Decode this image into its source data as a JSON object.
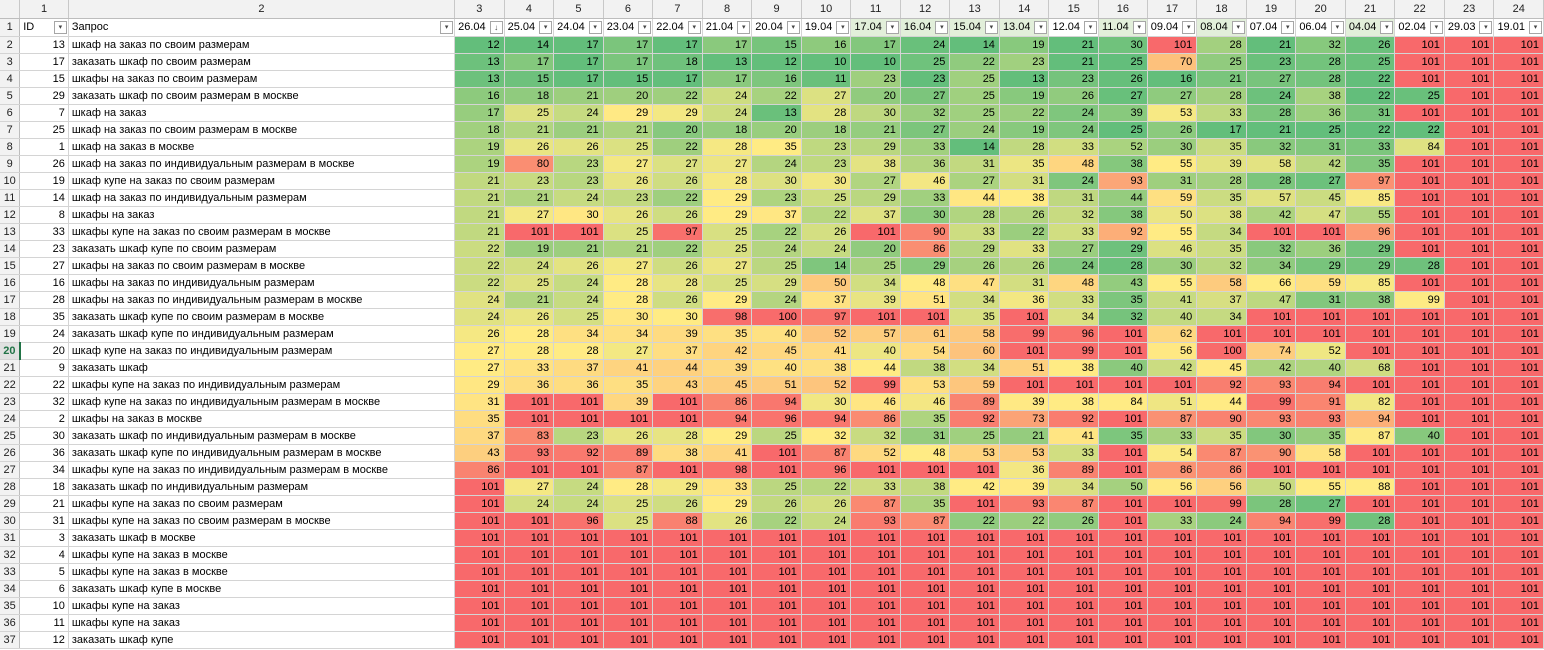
{
  "col_numbers": [
    "1",
    "2",
    "3",
    "4",
    "5",
    "6",
    "7",
    "8",
    "9",
    "10",
    "11",
    "12",
    "13",
    "14",
    "15",
    "16",
    "17",
    "18",
    "19",
    "20",
    "21",
    "22",
    "23",
    "24"
  ],
  "header": {
    "id_label": "ID",
    "query_label": "Запрос",
    "dates": [
      "26.04",
      "25.04",
      "24.04",
      "23.04",
      "22.04",
      "21.04",
      "20.04",
      "19.04",
      "17.04",
      "16.04",
      "15.04",
      "13.04",
      "12.04",
      "11.04",
      "09.04",
      "08.04",
      "07.04",
      "06.04",
      "04.04",
      "02.04",
      "29.03",
      "19.01"
    ],
    "sorted_column_index": 0,
    "header_date_colors": [
      "#ffffff",
      "#ffffff",
      "#ffffff",
      "#ffffff",
      "#ffffff",
      "#ffffff",
      "#ffffff",
      "#ffffff",
      "#e2efda",
      "#e2efda",
      "#e2efda",
      "#e2efda",
      "#ffffff",
      "#e2efda",
      "#ffffff",
      "#e2efda",
      "#ffffff",
      "#ffffff",
      "#e2efda",
      "#ffffff",
      "#ffffff",
      "#ffffff"
    ]
  },
  "selected_row": "20",
  "colors": {
    "good": "#63be7b",
    "mid": "#ffeb84",
    "bad": "#f8696b",
    "header_bg": "#f2f2f2",
    "selection": "#217346"
  },
  "rows": [
    {
      "row": "2",
      "id": "13",
      "query": "шкаф на заказ по своим размерам",
      "values": [
        12,
        14,
        17,
        17,
        17,
        17,
        15,
        16,
        17,
        24,
        14,
        19,
        21,
        30,
        101,
        28,
        21,
        32,
        26,
        101,
        101,
        101
      ]
    },
    {
      "row": "3",
      "id": "17",
      "query": "заказать шкаф по своим размерам",
      "values": [
        13,
        17,
        17,
        17,
        18,
        13,
        12,
        10,
        10,
        25,
        22,
        23,
        21,
        25,
        70,
        25,
        23,
        28,
        25,
        101,
        101,
        101
      ]
    },
    {
      "row": "4",
      "id": "15",
      "query": "шкафы на заказ по своим размерам",
      "values": [
        13,
        15,
        17,
        15,
        17,
        17,
        16,
        11,
        23,
        23,
        25,
        13,
        23,
        26,
        16,
        21,
        27,
        28,
        22,
        101,
        101,
        101
      ]
    },
    {
      "row": "5",
      "id": "29",
      "query": "заказать шкаф по своим размерам в москве",
      "values": [
        16,
        18,
        21,
        20,
        22,
        24,
        22,
        27,
        20,
        27,
        25,
        19,
        26,
        27,
        27,
        28,
        24,
        38,
        22,
        25,
        101,
        101
      ]
    },
    {
      "row": "6",
      "id": "7",
      "query": "шкаф на заказ",
      "values": [
        17,
        25,
        24,
        29,
        29,
        24,
        13,
        28,
        30,
        32,
        25,
        22,
        24,
        39,
        53,
        33,
        28,
        36,
        31,
        101,
        101,
        101
      ]
    },
    {
      "row": "7",
      "id": "25",
      "query": "шкаф на заказ по своим размерам в москве",
      "values": [
        18,
        21,
        21,
        21,
        20,
        18,
        20,
        18,
        21,
        27,
        24,
        19,
        24,
        25,
        26,
        17,
        21,
        25,
        22,
        22,
        101,
        101
      ]
    },
    {
      "row": "8",
      "id": "1",
      "query": "шкаф на заказ в москве",
      "values": [
        19,
        26,
        26,
        25,
        22,
        28,
        35,
        23,
        29,
        33,
        14,
        28,
        33,
        52,
        30,
        35,
        32,
        31,
        33,
        84,
        101,
        101
      ]
    },
    {
      "row": "9",
      "id": "26",
      "query": "шкаф на заказ по индивидуальным размерам в москве",
      "values": [
        19,
        80,
        23,
        27,
        27,
        27,
        24,
        23,
        38,
        36,
        31,
        35,
        48,
        38,
        55,
        39,
        58,
        42,
        35,
        101,
        101,
        101
      ]
    },
    {
      "row": "10",
      "id": "19",
      "query": "шкаф купе на заказ по своим размерам",
      "values": [
        21,
        23,
        23,
        26,
        26,
        28,
        30,
        30,
        27,
        46,
        27,
        31,
        24,
        93,
        31,
        28,
        28,
        27,
        97,
        101,
        101,
        101
      ]
    },
    {
      "row": "11",
      "id": "14",
      "query": "шкаф на заказ по индивидуальным размерам",
      "values": [
        21,
        21,
        24,
        23,
        22,
        29,
        23,
        25,
        29,
        33,
        44,
        38,
        31,
        44,
        59,
        35,
        57,
        45,
        85,
        101,
        101,
        101
      ]
    },
    {
      "row": "12",
      "id": "8",
      "query": "шкафы на заказ",
      "values": [
        21,
        27,
        30,
        26,
        26,
        29,
        37,
        22,
        37,
        30,
        28,
        26,
        32,
        38,
        50,
        38,
        42,
        47,
        55,
        101,
        101,
        101
      ]
    },
    {
      "row": "13",
      "id": "33",
      "query": "шкафы купе на заказ по своим размерам в москве",
      "values": [
        21,
        101,
        101,
        25,
        97,
        25,
        22,
        26,
        101,
        90,
        33,
        22,
        33,
        92,
        55,
        34,
        101,
        101,
        96,
        101,
        101,
        101
      ]
    },
    {
      "row": "14",
      "id": "23",
      "query": "заказать шкаф купе по своим размерам",
      "values": [
        22,
        19,
        21,
        21,
        22,
        25,
        24,
        24,
        20,
        86,
        29,
        33,
        27,
        29,
        46,
        35,
        32,
        36,
        29,
        101,
        101,
        101
      ]
    },
    {
      "row": "15",
      "id": "27",
      "query": "шкафы на заказ по своим размерам в москве",
      "values": [
        22,
        24,
        26,
        27,
        26,
        27,
        25,
        14,
        25,
        29,
        26,
        26,
        24,
        28,
        30,
        32,
        34,
        29,
        29,
        28,
        101,
        101
      ]
    },
    {
      "row": "16",
      "id": "16",
      "query": "шкафы на заказ по индивидуальным размерам",
      "values": [
        22,
        25,
        24,
        28,
        28,
        25,
        29,
        50,
        34,
        48,
        47,
        31,
        48,
        43,
        55,
        58,
        66,
        59,
        85,
        101,
        101,
        101
      ]
    },
    {
      "row": "17",
      "id": "28",
      "query": "шкафы на заказ по индивидуальным размерам в москве",
      "values": [
        24,
        21,
        24,
        28,
        26,
        29,
        24,
        37,
        39,
        51,
        34,
        36,
        33,
        35,
        41,
        37,
        47,
        31,
        38,
        99,
        101,
        101
      ]
    },
    {
      "row": "18",
      "id": "35",
      "query": "заказать шкаф купе по своим размерам в москве",
      "values": [
        24,
        26,
        25,
        30,
        30,
        98,
        100,
        97,
        101,
        101,
        35,
        101,
        34,
        32,
        40,
        34,
        101,
        101,
        101,
        101,
        101,
        101
      ]
    },
    {
      "row": "19",
      "id": "24",
      "query": "заказать шкаф купе по индивидуальным размерам",
      "values": [
        26,
        28,
        34,
        34,
        39,
        35,
        40,
        52,
        57,
        61,
        58,
        99,
        96,
        101,
        62,
        101,
        101,
        101,
        101,
        101,
        101,
        101
      ]
    },
    {
      "row": "20",
      "id": "20",
      "query": "шкаф купе на заказ по индивидуальным размерам",
      "values": [
        27,
        28,
        28,
        27,
        37,
        42,
        45,
        41,
        40,
        54,
        60,
        101,
        99,
        101,
        56,
        100,
        74,
        52,
        101,
        101,
        101,
        101
      ]
    },
    {
      "row": "21",
      "id": "9",
      "query": "заказать шкаф",
      "values": [
        27,
        33,
        37,
        41,
        44,
        39,
        40,
        38,
        44,
        38,
        34,
        51,
        38,
        40,
        42,
        45,
        42,
        40,
        68,
        101,
        101,
        101
      ]
    },
    {
      "row": "22",
      "id": "22",
      "query": "шкафы купе на заказ по индивидуальным размерам",
      "values": [
        29,
        36,
        36,
        35,
        43,
        45,
        51,
        52,
        99,
        53,
        59,
        101,
        101,
        101,
        101,
        92,
        93,
        94,
        101,
        101,
        101,
        101
      ]
    },
    {
      "row": "23",
      "id": "32",
      "query": "шкаф купе на заказ по индивидуальным размерам в москве",
      "values": [
        31,
        101,
        101,
        39,
        101,
        86,
        94,
        30,
        46,
        46,
        89,
        39,
        38,
        84,
        51,
        44,
        99,
        91,
        82,
        101,
        101,
        101
      ]
    },
    {
      "row": "24",
      "id": "2",
      "query": "шкафы на заказ в москве",
      "values": [
        35,
        101,
        101,
        101,
        101,
        94,
        96,
        94,
        86,
        35,
        92,
        73,
        92,
        101,
        87,
        90,
        93,
        93,
        94,
        101,
        101,
        101
      ]
    },
    {
      "row": "25",
      "id": "30",
      "query": "заказать шкаф по индивидуальным размерам в москве",
      "values": [
        37,
        83,
        23,
        26,
        28,
        29,
        25,
        32,
        32,
        31,
        25,
        21,
        41,
        35,
        33,
        35,
        30,
        35,
        87,
        40,
        101,
        101
      ]
    },
    {
      "row": "26",
      "id": "36",
      "query": "заказать шкаф купе по индивидуальным размерам в москве",
      "values": [
        43,
        93,
        92,
        89,
        38,
        41,
        101,
        87,
        52,
        48,
        53,
        53,
        33,
        101,
        54,
        87,
        90,
        58,
        101,
        101,
        101,
        101
      ]
    },
    {
      "row": "27",
      "id": "34",
      "query": "шкафы купе на заказ по индивидуальным размерам в москве",
      "values": [
        86,
        101,
        101,
        87,
        101,
        98,
        101,
        96,
        101,
        101,
        101,
        36,
        89,
        101,
        86,
        86,
        101,
        101,
        101,
        101,
        101,
        101
      ]
    },
    {
      "row": "28",
      "id": "18",
      "query": "заказать шкаф по индивидуальным размерам",
      "values": [
        101,
        27,
        24,
        28,
        29,
        33,
        25,
        22,
        33,
        38,
        42,
        39,
        34,
        50,
        56,
        56,
        50,
        55,
        88,
        101,
        101,
        101
      ]
    },
    {
      "row": "29",
      "id": "21",
      "query": "шкафы купе на заказ по своим размерам",
      "values": [
        101,
        24,
        24,
        25,
        26,
        29,
        26,
        26,
        87,
        35,
        101,
        93,
        87,
        101,
        101,
        99,
        28,
        27,
        101,
        101,
        101,
        101
      ]
    },
    {
      "row": "30",
      "id": "31",
      "query": "шкафы купе на заказ по своим размерам в москве",
      "values": [
        101,
        101,
        96,
        25,
        88,
        26,
        22,
        24,
        93,
        87,
        22,
        22,
        26,
        101,
        33,
        24,
        94,
        99,
        28,
        101,
        101,
        101
      ]
    },
    {
      "row": "31",
      "id": "3",
      "query": "заказать шкаф в москве",
      "values": [
        101,
        101,
        101,
        101,
        101,
        101,
        101,
        101,
        101,
        101,
        101,
        101,
        101,
        101,
        101,
        101,
        101,
        101,
        101,
        101,
        101,
        101
      ]
    },
    {
      "row": "32",
      "id": "4",
      "query": "шкафы купе на заказ в москве",
      "values": [
        101,
        101,
        101,
        101,
        101,
        101,
        101,
        101,
        101,
        101,
        101,
        101,
        101,
        101,
        101,
        101,
        101,
        101,
        101,
        101,
        101,
        101
      ]
    },
    {
      "row": "33",
      "id": "5",
      "query": "шкафы купе на заказ в москве",
      "values": [
        101,
        101,
        101,
        101,
        101,
        101,
        101,
        101,
        101,
        101,
        101,
        101,
        101,
        101,
        101,
        101,
        101,
        101,
        101,
        101,
        101,
        101
      ]
    },
    {
      "row": "34",
      "id": "6",
      "query": "заказать шкаф купе в москве",
      "values": [
        101,
        101,
        101,
        101,
        101,
        101,
        101,
        101,
        101,
        101,
        101,
        101,
        101,
        101,
        101,
        101,
        101,
        101,
        101,
        101,
        101,
        101
      ]
    },
    {
      "row": "35",
      "id": "10",
      "query": "шкафы купе на заказ",
      "values": [
        101,
        101,
        101,
        101,
        101,
        101,
        101,
        101,
        101,
        101,
        101,
        101,
        101,
        101,
        101,
        101,
        101,
        101,
        101,
        101,
        101,
        101
      ]
    },
    {
      "row": "36",
      "id": "11",
      "query": "шкафы купе на заказ",
      "values": [
        101,
        101,
        101,
        101,
        101,
        101,
        101,
        101,
        101,
        101,
        101,
        101,
        101,
        101,
        101,
        101,
        101,
        101,
        101,
        101,
        101,
        101
      ]
    },
    {
      "row": "37",
      "id": "12",
      "query": "заказать шкаф купе",
      "values": [
        101,
        101,
        101,
        101,
        101,
        101,
        101,
        101,
        101,
        101,
        101,
        101,
        101,
        101,
        101,
        101,
        101,
        101,
        101,
        101,
        101,
        101
      ]
    }
  ]
}
